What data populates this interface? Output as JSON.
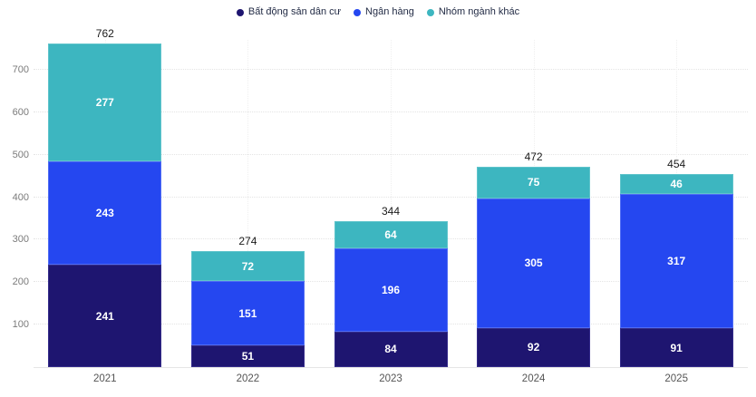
{
  "chart_data": {
    "type": "bar",
    "stacked": true,
    "title": "",
    "xlabel": "",
    "ylabel": "",
    "categories": [
      "2021",
      "2022",
      "2023",
      "2024",
      "2025"
    ],
    "series": [
      {
        "name": "Bất động sản dân cư",
        "color": "#1e1570",
        "border_color": "#342b8a",
        "values": [
          241,
          51,
          84,
          92,
          91
        ]
      },
      {
        "name": "Ngân hàng",
        "color": "#2547f0",
        "border_color": "#4f6cf5",
        "values": [
          243,
          151,
          196,
          305,
          317
        ]
      },
      {
        "name": "Nhóm ngành khác",
        "color": "#3db6c0",
        "border_color": "#5fc4cb",
        "values": [
          277,
          72,
          64,
          75,
          46
        ]
      }
    ],
    "totals": [
      762,
      274,
      344,
      472,
      454
    ],
    "yticks": [
      100,
      200,
      300,
      400,
      500,
      600,
      700
    ],
    "ylim": [
      0,
      785
    ],
    "grid": true,
    "legend_position": "top",
    "value_label_color": "#ffffff",
    "total_label_color": "#1a1a1a",
    "axis_tick_color": "#7b7b7b",
    "category_label_color": "#555555",
    "legend_text_color": "#222b45",
    "background_color": "#ffffff"
  }
}
